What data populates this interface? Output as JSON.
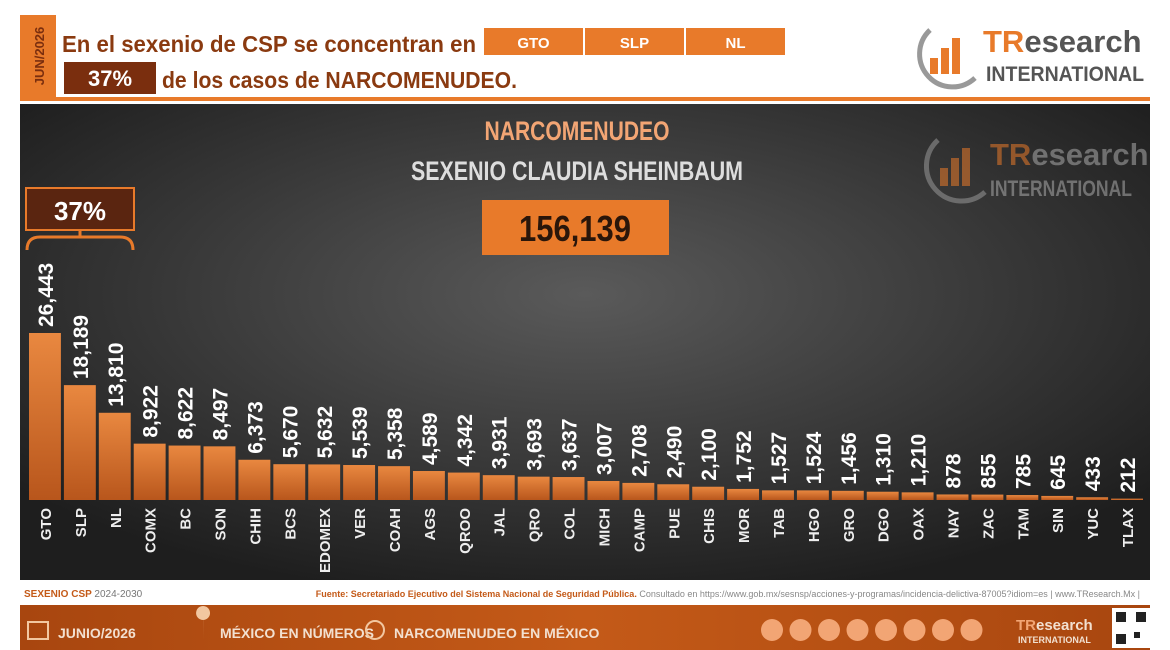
{
  "header": {
    "date": "JUN/2026",
    "line1": "En el sexenio de CSP se concentran en",
    "states": [
      "GTO",
      "SLP",
      "NL"
    ],
    "share": "37%",
    "line2": "de los casos de NARCOMENUDEO."
  },
  "logo": {
    "brand_a": "TR",
    "brand_b": "esearch",
    "sub": "INTERNATIONAL"
  },
  "chart_data": {
    "type": "bar",
    "title": "NARCOMENUDEO",
    "subtitle": "SEXENIO CLAUDIA SHEINBAUM",
    "total": {
      "value": 156139,
      "label": "156,139"
    },
    "bracket_label": "37%",
    "color": "#e07a30",
    "categories": [
      "GTO",
      "SLP",
      "NL",
      "COMX",
      "BC",
      "SON",
      "CHIH",
      "BCS",
      "EDOMEX",
      "VER",
      "COAH",
      "AGS",
      "QROO",
      "JAL",
      "QRO",
      "COL",
      "MICH",
      "CAMP",
      "PUE",
      "CHIS",
      "MOR",
      "TAB",
      "HGO",
      "GRO",
      "DGO",
      "OAX",
      "NAY",
      "ZAC",
      "TAM",
      "SIN",
      "YUC",
      "TLAX"
    ],
    "values": [
      26443,
      18189,
      13810,
      8922,
      8622,
      8497,
      6373,
      5670,
      5632,
      5539,
      5358,
      4589,
      4342,
      3931,
      3693,
      3637,
      3007,
      2708,
      2490,
      2100,
      1752,
      1527,
      1524,
      1456,
      1310,
      1210,
      878,
      855,
      785,
      645,
      433,
      212
    ],
    "value_labels": [
      "26,443",
      "18,189",
      "13,810",
      "8,922",
      "8,622",
      "8,497",
      "6,373",
      "5,670",
      "5,632",
      "5,539",
      "5,358",
      "4,589",
      "4,342",
      "3,931",
      "3,693",
      "3,637",
      "3,007",
      "2,708",
      "2,490",
      "2,100",
      "1,752",
      "1,527",
      "1,524",
      "1,456",
      "1,310",
      "1,210",
      "878",
      "855",
      "785",
      "645",
      "433",
      "212"
    ]
  },
  "footer": {
    "period_a": "SEXENIO CSP",
    "period_b": "2024-2030",
    "source": "Fuente: Secretariado Ejecutivo del Sistema Nacional de Seguridad Pública.",
    "consulted": "Consultado en https://www.gob.mx/sesnsp/acciones-y-programas/incidencia-delictiva-87005?idiom=es | www.TResearch.Mx |",
    "date": "JUNIO/2026",
    "link1": "MÉXICO EN NÚMEROS",
    "link2": "NARCOMENUDEO EN MÉXICO"
  }
}
